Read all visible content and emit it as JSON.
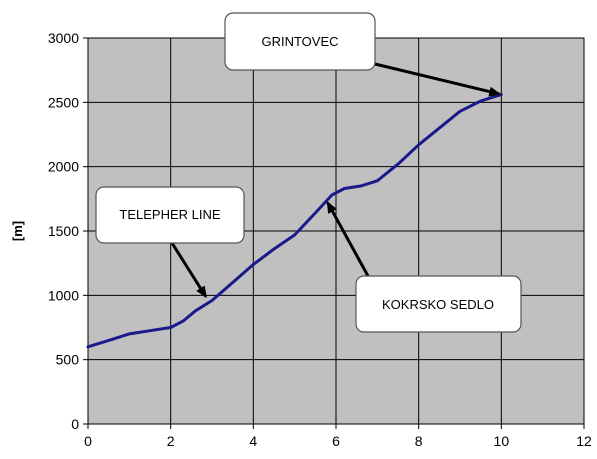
{
  "chart_data": {
    "type": "line",
    "title": "",
    "xlabel": "",
    "ylabel": "[m]",
    "xlim": [
      0,
      12
    ],
    "ylim": [
      0,
      3000
    ],
    "x_ticks": [
      "0",
      "2",
      "4",
      "6",
      "8",
      "10",
      "12"
    ],
    "y_ticks": [
      "0",
      "500",
      "1000",
      "1500",
      "2000",
      "2500",
      "3000"
    ],
    "grid": true,
    "legend": "none",
    "colors": {
      "plot_background": "#c0c0c0",
      "line": "#1a1a8c",
      "grid": "#000000"
    },
    "series": [
      {
        "points": [
          [
            0,
            600
          ],
          [
            0.5,
            650
          ],
          [
            1,
            700
          ],
          [
            1.5,
            725
          ],
          [
            2,
            750
          ],
          [
            2.3,
            800
          ],
          [
            2.6,
            880
          ],
          [
            3,
            960
          ],
          [
            3.5,
            1100
          ],
          [
            4,
            1240
          ],
          [
            4.5,
            1360
          ],
          [
            5,
            1470
          ],
          [
            5.5,
            1640
          ],
          [
            5.9,
            1780
          ],
          [
            6.2,
            1830
          ],
          [
            6.6,
            1850
          ],
          [
            7,
            1890
          ],
          [
            7.5,
            2020
          ],
          [
            8,
            2170
          ],
          [
            8.5,
            2300
          ],
          [
            9,
            2430
          ],
          [
            9.5,
            2510
          ],
          [
            10,
            2560
          ]
        ]
      }
    ],
    "annotations": [
      {
        "text": "GRINTOVEC",
        "point": [
          9.95,
          2565
        ]
      },
      {
        "text": "TELEPHER LINE",
        "point": [
          2.85,
          990
        ]
      },
      {
        "text": "KOKRSKO SEDLO",
        "point": [
          5.8,
          1720
        ]
      }
    ]
  }
}
